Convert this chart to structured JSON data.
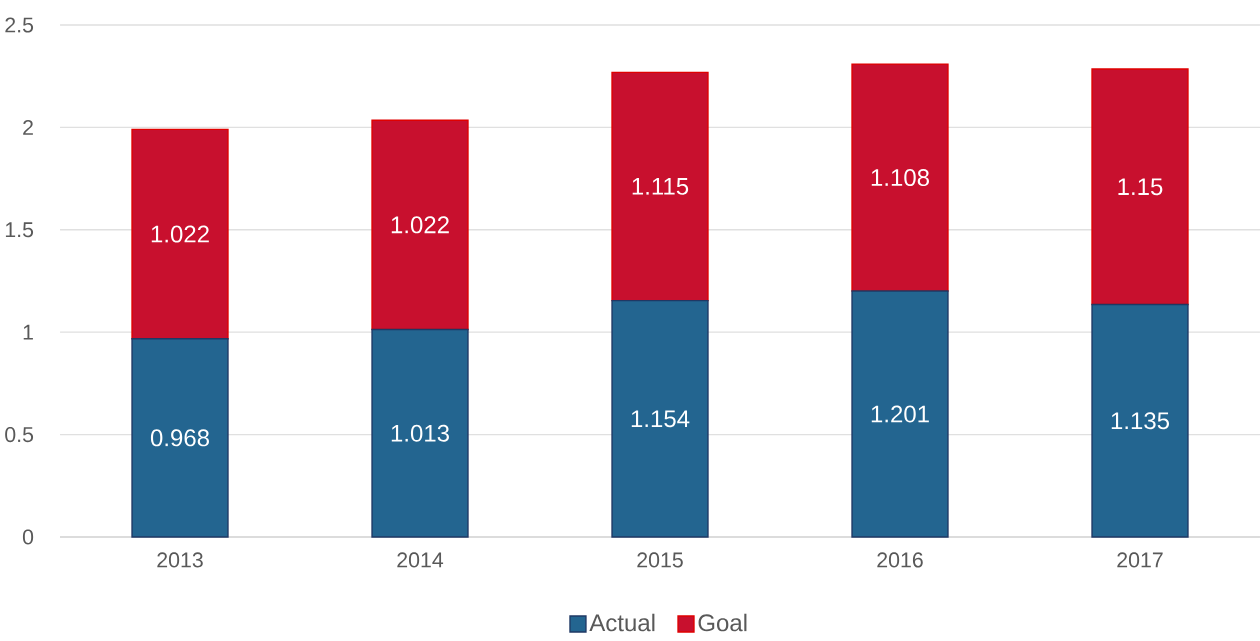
{
  "chart_data": {
    "type": "bar",
    "stacked": true,
    "categories": [
      "2013",
      "2014",
      "2015",
      "2016",
      "2017"
    ],
    "series": [
      {
        "name": "Actual",
        "color": "#236590",
        "values": [
          0.968,
          1.013,
          1.154,
          1.201,
          1.135
        ]
      },
      {
        "name": "Goal",
        "color": "#c8102e",
        "values": [
          1.022,
          1.022,
          1.115,
          1.108,
          1.15
        ]
      }
    ],
    "ylim": [
      0,
      2.5
    ],
    "yticks": [
      0,
      0.5,
      1,
      1.5,
      2,
      2.5
    ],
    "grid": "y",
    "legend": "bottom",
    "data_labels": true
  }
}
